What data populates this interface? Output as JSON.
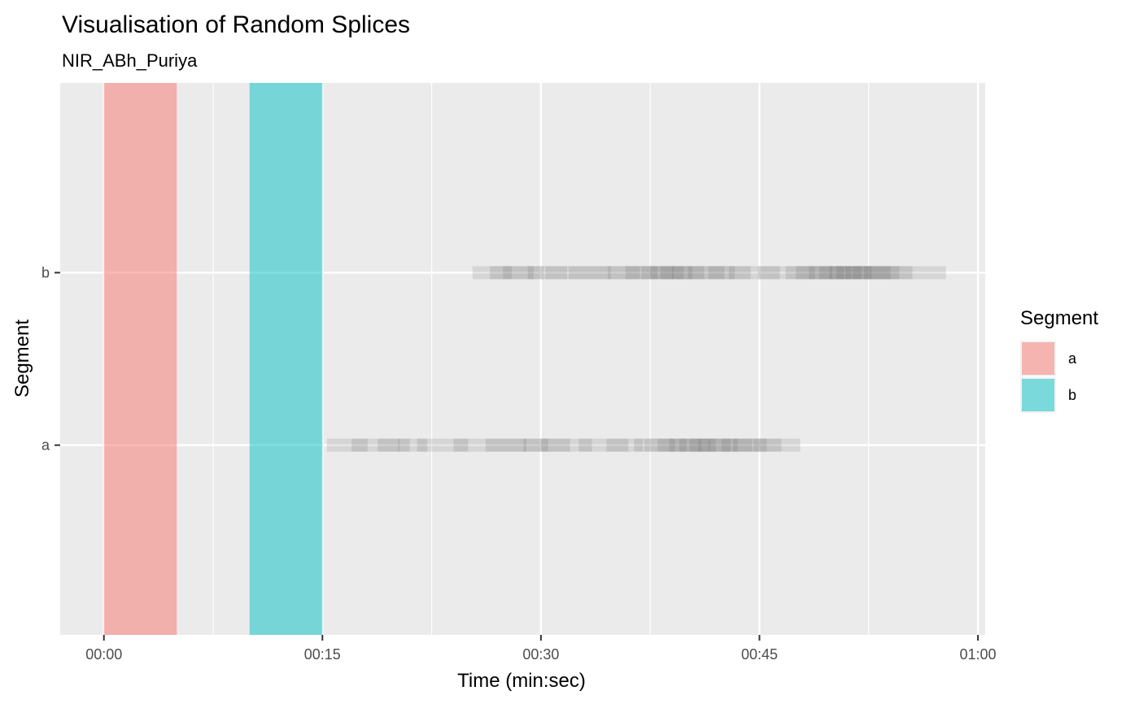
{
  "chart_data": {
    "type": "bar",
    "title": "Visualisation of Random Splices",
    "subtitle": "NIR_ABh_Puriya",
    "xlabel": "Time (min:sec)",
    "ylabel": "Segment",
    "x_unit": "seconds",
    "xlim": [
      -3,
      60.5
    ],
    "x_ticks": [
      {
        "value": 0,
        "label": "00:00"
      },
      {
        "value": 15,
        "label": "00:15"
      },
      {
        "value": 30,
        "label": "00:30"
      },
      {
        "value": 45,
        "label": "00:45"
      },
      {
        "value": 60,
        "label": "01:00"
      }
    ],
    "x_minor_ticks": [
      7.5,
      22.5,
      37.5,
      52.5
    ],
    "y_categories": [
      "a",
      "b"
    ],
    "grid": true,
    "segments": [
      {
        "name": "a",
        "start": 0,
        "end": 5,
        "color": "#F8766D"
      },
      {
        "name": "b",
        "start": 10,
        "end": 15,
        "color": "#00BFC4"
      }
    ],
    "splices": {
      "a": [
        [
          15.3,
          18.1
        ],
        [
          17.0,
          20.3
        ],
        [
          18.8,
          21.0
        ],
        [
          20.2,
          22.2
        ],
        [
          21.5,
          25.0
        ],
        [
          24.0,
          27.5
        ],
        [
          26.2,
          29.0
        ],
        [
          27.5,
          30.5
        ],
        [
          28.8,
          32.0
        ],
        [
          30.0,
          33.5
        ],
        [
          32.6,
          36.0
        ],
        [
          34.5,
          37.0
        ],
        [
          36.4,
          39.2
        ],
        [
          37.1,
          40.0
        ],
        [
          38.0,
          41.0
        ],
        [
          38.8,
          41.6
        ],
        [
          39.5,
          42.0
        ],
        [
          40.2,
          43.0
        ],
        [
          40.8,
          43.5
        ],
        [
          41.5,
          44.5
        ],
        [
          42.4,
          45.5
        ],
        [
          43.2,
          46.5
        ],
        [
          44.6,
          47.8
        ]
      ],
      "b": [
        [
          25.3,
          28.0
        ],
        [
          26.5,
          29.5
        ],
        [
          27.4,
          30.2
        ],
        [
          29.1,
          31.8
        ],
        [
          30.3,
          33.4
        ],
        [
          31.9,
          34.8
        ],
        [
          33.4,
          36.8
        ],
        [
          34.6,
          38.0
        ],
        [
          35.8,
          39.1
        ],
        [
          36.9,
          39.8
        ],
        [
          37.5,
          40.4
        ],
        [
          38.2,
          41.2
        ],
        [
          39.0,
          42.6
        ],
        [
          40.1,
          43.3
        ],
        [
          41.5,
          44.4
        ],
        [
          42.9,
          46.4
        ],
        [
          44.9,
          48.8
        ],
        [
          46.8,
          50.0
        ],
        [
          47.5,
          50.8
        ],
        [
          48.4,
          51.3
        ],
        [
          49.1,
          52.0
        ],
        [
          49.8,
          52.7
        ],
        [
          50.3,
          53.4
        ],
        [
          50.9,
          54.0
        ],
        [
          51.4,
          54.6
        ],
        [
          52.2,
          55.5
        ],
        [
          53.4,
          57.8
        ]
      ]
    },
    "legend": {
      "title": "Segment",
      "position": "right",
      "entries": [
        {
          "label": "a",
          "color": "#F8766D"
        },
        {
          "label": "b",
          "color": "#00BFC4"
        }
      ]
    },
    "colors": {
      "panel_background": "#EBEBEB",
      "grid": "#FFFFFF",
      "splice": "#595959"
    }
  }
}
